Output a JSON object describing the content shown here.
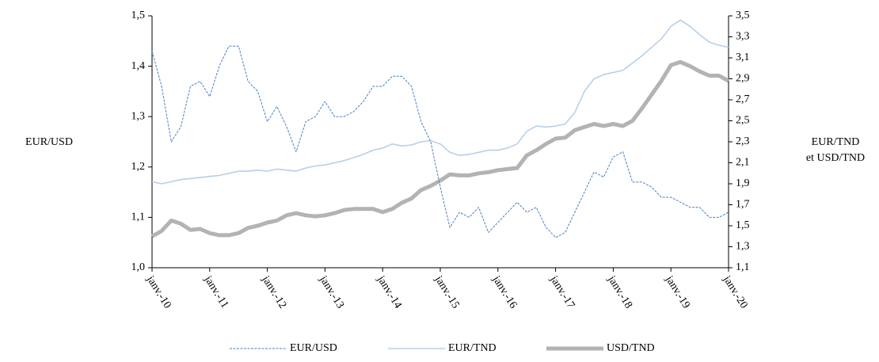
{
  "chart_data": {
    "type": "line",
    "ylabel": "EUR/USD",
    "y2label": [
      "EUR/TND",
      "et USD/TND"
    ],
    "x": [
      "2010-01",
      "2010-03",
      "2010-05",
      "2010-07",
      "2010-09",
      "2010-11",
      "2011-01",
      "2011-03",
      "2011-05",
      "2011-07",
      "2011-09",
      "2011-11",
      "2012-01",
      "2012-03",
      "2012-05",
      "2012-07",
      "2012-09",
      "2012-11",
      "2013-01",
      "2013-03",
      "2013-05",
      "2013-07",
      "2013-09",
      "2013-11",
      "2014-01",
      "2014-03",
      "2014-05",
      "2014-07",
      "2014-09",
      "2014-11",
      "2015-01",
      "2015-03",
      "2015-05",
      "2015-07",
      "2015-09",
      "2015-11",
      "2016-01",
      "2016-03",
      "2016-05",
      "2016-07",
      "2016-09",
      "2016-11",
      "2017-01",
      "2017-03",
      "2017-05",
      "2017-07",
      "2017-09",
      "2017-11",
      "2018-01",
      "2018-03",
      "2018-05",
      "2018-07",
      "2018-09",
      "2018-11",
      "2019-01",
      "2019-03",
      "2019-05",
      "2019-07",
      "2019-09",
      "2019-11",
      "2020-01"
    ],
    "series": [
      {
        "name": "EUR/USD",
        "color": "#4a7fc1",
        "width": 1,
        "dashed": true,
        "values": [
          1.43,
          1.36,
          1.25,
          1.28,
          1.36,
          1.37,
          1.34,
          1.4,
          1.44,
          1.44,
          1.37,
          1.35,
          1.29,
          1.32,
          1.28,
          1.23,
          1.29,
          1.3,
          1.33,
          1.3,
          1.3,
          1.31,
          1.33,
          1.36,
          1.36,
          1.38,
          1.38,
          1.36,
          1.29,
          1.25,
          1.16,
          1.08,
          1.11,
          1.1,
          1.12,
          1.07,
          1.09,
          1.11,
          1.13,
          1.11,
          1.12,
          1.08,
          1.06,
          1.07,
          1.11,
          1.15,
          1.19,
          1.18,
          1.22,
          1.23,
          1.17,
          1.17,
          1.16,
          1.14,
          1.14,
          1.13,
          1.12,
          1.12,
          1.1,
          1.1,
          1.11
        ]
      },
      {
        "name": "EUR/TND",
        "color": "#b8cfe8",
        "width": 1.6,
        "dashed": false,
        "axis": "y2",
        "values": [
          1.92,
          1.9,
          1.92,
          1.94,
          1.95,
          1.96,
          1.97,
          1.98,
          2.0,
          2.02,
          2.02,
          2.03,
          2.02,
          2.04,
          2.03,
          2.02,
          2.05,
          2.07,
          2.08,
          2.1,
          2.12,
          2.15,
          2.18,
          2.22,
          2.24,
          2.28,
          2.26,
          2.27,
          2.3,
          2.31,
          2.28,
          2.2,
          2.17,
          2.18,
          2.2,
          2.22,
          2.22,
          2.24,
          2.28,
          2.4,
          2.45,
          2.44,
          2.45,
          2.47,
          2.58,
          2.78,
          2.9,
          2.94,
          2.96,
          2.98,
          3.05,
          3.12,
          3.2,
          3.28,
          3.4,
          3.46,
          3.4,
          3.32,
          3.25,
          3.22,
          3.2
        ]
      },
      {
        "name": "USD/TND",
        "color": "#b3b3b3",
        "width": 5,
        "dashed": false,
        "axis": "y2",
        "values": [
          1.4,
          1.45,
          1.55,
          1.52,
          1.46,
          1.47,
          1.43,
          1.41,
          1.41,
          1.43,
          1.48,
          1.5,
          1.53,
          1.55,
          1.6,
          1.62,
          1.6,
          1.59,
          1.6,
          1.62,
          1.65,
          1.66,
          1.66,
          1.66,
          1.63,
          1.66,
          1.72,
          1.76,
          1.84,
          1.88,
          1.93,
          1.99,
          1.98,
          1.98,
          2.0,
          2.01,
          2.03,
          2.04,
          2.05,
          2.17,
          2.22,
          2.28,
          2.33,
          2.34,
          2.41,
          2.44,
          2.47,
          2.45,
          2.47,
          2.45,
          2.5,
          2.62,
          2.75,
          2.88,
          3.03,
          3.06,
          3.02,
          2.97,
          2.93,
          2.93,
          2.88
        ]
      }
    ],
    "xlim": [
      "2010-01",
      "2020-01"
    ],
    "xticks": [
      {
        "value": "2010-01",
        "label": "janv.-10"
      },
      {
        "value": "2011-01",
        "label": "janv.-11"
      },
      {
        "value": "2012-01",
        "label": "janv.-12"
      },
      {
        "value": "2013-01",
        "label": "janv.-13"
      },
      {
        "value": "2014-01",
        "label": "janv.-14"
      },
      {
        "value": "2015-01",
        "label": "janv.-15"
      },
      {
        "value": "2016-01",
        "label": "janv.-16"
      },
      {
        "value": "2017-01",
        "label": "janv.-17"
      },
      {
        "value": "2018-01",
        "label": "janv.-18"
      },
      {
        "value": "2019-01",
        "label": "janv.-19"
      },
      {
        "value": "2020-01",
        "label": "janv.-20"
      }
    ],
    "ylim": [
      1.0,
      1.5
    ],
    "yticks": [
      {
        "value": 1.0,
        "label": "1,0"
      },
      {
        "value": 1.1,
        "label": "1,1"
      },
      {
        "value": 1.2,
        "label": "1,2"
      },
      {
        "value": 1.3,
        "label": "1,3"
      },
      {
        "value": 1.4,
        "label": "1,4"
      },
      {
        "value": 1.5,
        "label": "1,5"
      }
    ],
    "y2lim": [
      1.1,
      3.5
    ],
    "y2ticks": [
      {
        "value": 1.1,
        "label": "1,1"
      },
      {
        "value": 1.3,
        "label": "1,3"
      },
      {
        "value": 1.5,
        "label": "1,5"
      },
      {
        "value": 1.7,
        "label": "1,7"
      },
      {
        "value": 1.9,
        "label": "1,9"
      },
      {
        "value": 2.1,
        "label": "2,1"
      },
      {
        "value": 2.3,
        "label": "2,3"
      },
      {
        "value": 2.5,
        "label": "2,5"
      },
      {
        "value": 2.7,
        "label": "2,7"
      },
      {
        "value": 2.9,
        "label": "2,9"
      },
      {
        "value": 3.1,
        "label": "3,1"
      },
      {
        "value": 3.3,
        "label": "3,3"
      },
      {
        "value": 3.5,
        "label": "3,5"
      }
    ],
    "legend": "bottom"
  }
}
